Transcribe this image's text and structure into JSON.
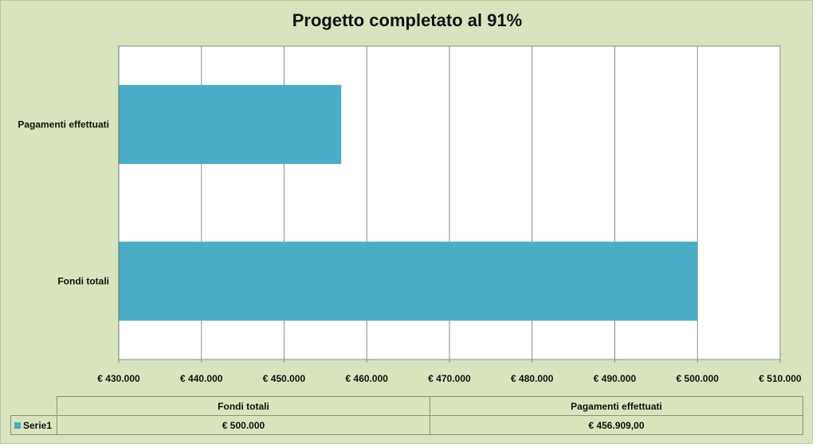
{
  "chart_data": {
    "type": "bar",
    "orientation": "horizontal",
    "title": "Progetto completato al 91%",
    "categories": [
      "Pagamenti effettuati",
      "Fondi totali"
    ],
    "series": [
      {
        "name": "Serie1",
        "values": [
          456909,
          500000
        ],
        "color": "#4bacc6"
      }
    ],
    "xlim": [
      430000,
      510000
    ],
    "xticks": [
      430000,
      440000,
      450000,
      460000,
      470000,
      480000,
      490000,
      500000,
      510000
    ],
    "xtick_labels": [
      "€ 430.000",
      "€ 440.000",
      "€ 450.000",
      "€ 460.000",
      "€ 470.000",
      "€ 480.000",
      "€ 490.000",
      "€ 500.000",
      "€ 510.000"
    ],
    "grid": true,
    "legend": "in data table",
    "data_table": {
      "headers": [
        "Fondi totali",
        "Pagamenti effettuati"
      ],
      "rows": [
        {
          "series": "Serie1",
          "values": [
            "€ 500.000",
            "€ 456.909,00"
          ]
        }
      ]
    }
  },
  "colors": {
    "background": "#d7e4bd",
    "plot": "#ffffff",
    "bar": "#4bacc6"
  }
}
